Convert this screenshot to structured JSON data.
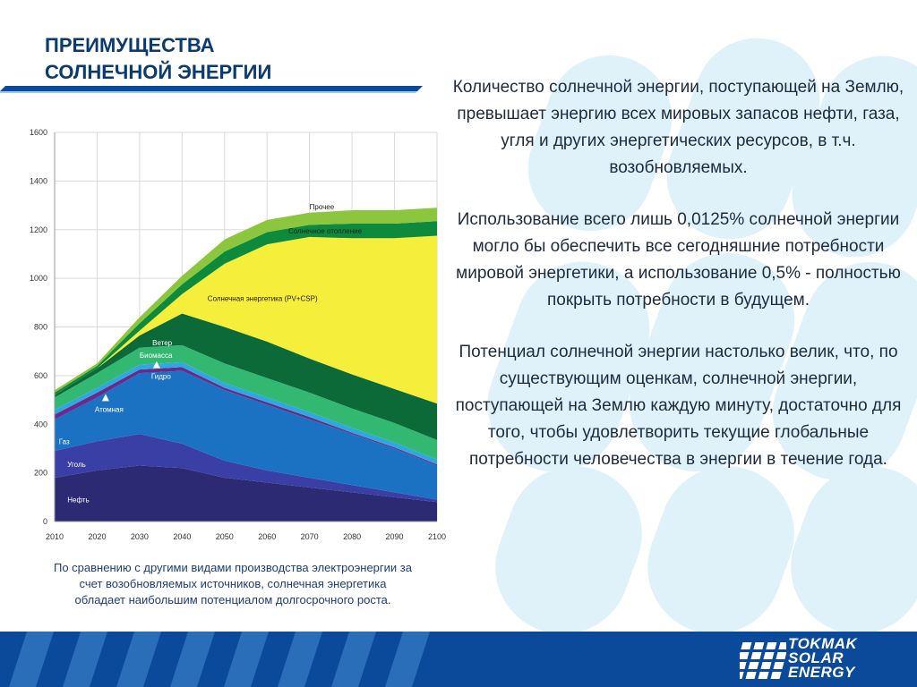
{
  "header": {
    "title_line1": "ПРЕИМУЩЕСТВА",
    "title_line2": "СОЛНЕЧНОЙ ЭНЕРГИИ"
  },
  "caption": "По сравнению с другими видами производства электроэнергии за счет возобновляемых источников, солнечная энергетика обладает наибольшим потенциалом долгосрочного роста.",
  "paragraphs": [
    "Количество солнечной энергии, поступающей на Землю, превышает энергию всех мировых запасов нефти, газа, угля и других энергетических ресурсов, в т.ч. возобновляемых.",
    "Использование всего лишь 0,0125% солнечной энергии могло бы обеспечить все сегодняшние потребности мировой энергетики, а использование 0,5% - полностью покрыть потребности в будущем.",
    "Потенциал солнечной энергии настолько велик, что, по существующим оценкам, солнечной энергии, поступающей на Землю каждую минуту, достаточно для того, чтобы удовлетворить текущие глобальные потребности человечества в энергии в течение года."
  ],
  "logo": {
    "line1": "TOKMAK",
    "line2": "SOLAR",
    "line3": "ENERGY"
  },
  "colors": {
    "title": "#0b3a6e",
    "footer": "#0b4a9a",
    "text": "#1f2a3d",
    "caption": "#1d3d7a"
  },
  "chart_data": {
    "type": "area",
    "stacked": true,
    "x": [
      2010,
      2020,
      2030,
      2040,
      2050,
      2060,
      2070,
      2080,
      2090,
      2100
    ],
    "yticks": [
      0,
      200,
      400,
      600,
      800,
      1000,
      1200,
      1400,
      1600
    ],
    "xticks": [
      "2010",
      "2020",
      "2030",
      "2040",
      "2050",
      "2060",
      "2070",
      "2080",
      "2090",
      "2100"
    ],
    "ylim": [
      0,
      1600
    ],
    "grid": true,
    "series": [
      {
        "name": "Нефть",
        "color": "#2c2a73",
        "values": [
          180,
          210,
          230,
          220,
          180,
          160,
          140,
          120,
          100,
          80
        ]
      },
      {
        "name": "Уголь",
        "color": "#3a3fa6",
        "values": [
          110,
          120,
          130,
          100,
          70,
          50,
          40,
          30,
          20,
          10
        ]
      },
      {
        "name": "Газ",
        "color": "#1c72c2",
        "values": [
          130,
          180,
          250,
          300,
          290,
          270,
          240,
          210,
          180,
          140
        ]
      },
      {
        "name": "Атомная",
        "color": "#6a2a8c",
        "values": [
          20,
          20,
          15,
          15,
          10,
          10,
          10,
          5,
          5,
          5
        ]
      },
      {
        "name": "Гидро",
        "color": "#2fa8e0",
        "values": [
          20,
          20,
          20,
          20,
          20,
          20,
          20,
          20,
          20,
          20
        ]
      },
      {
        "name": "Биомасса",
        "color": "#33b872",
        "values": [
          50,
          60,
          70,
          70,
          80,
          80,
          80,
          80,
          80,
          80
        ]
      },
      {
        "name": "Ветер",
        "color": "#0c6a38",
        "values": [
          10,
          20,
          50,
          130,
          150,
          150,
          140,
          140,
          140,
          150
        ]
      },
      {
        "name": "Солнечная энергетика (PV+CSP)",
        "color": "#f5ee3a",
        "values": [
          0,
          0,
          20,
          80,
          260,
          400,
          500,
          560,
          620,
          690
        ]
      },
      {
        "name": "Солнечное отопление",
        "color": "#0e8a3c",
        "values": [
          10,
          10,
          30,
          40,
          50,
          50,
          50,
          60,
          60,
          60
        ]
      },
      {
        "name": "Прочее",
        "color": "#8cc63f",
        "values": [
          10,
          10,
          25,
          35,
          50,
          50,
          50,
          55,
          55,
          55
        ]
      }
    ],
    "annotations": [
      "Прочее",
      "Солнечное отопление",
      "Солнечная энергетика (PV+CSP)",
      "Ветер",
      "Биомасса",
      "Гидро",
      "Атомная",
      "Газ",
      "Уголь",
      "Нефть"
    ]
  }
}
